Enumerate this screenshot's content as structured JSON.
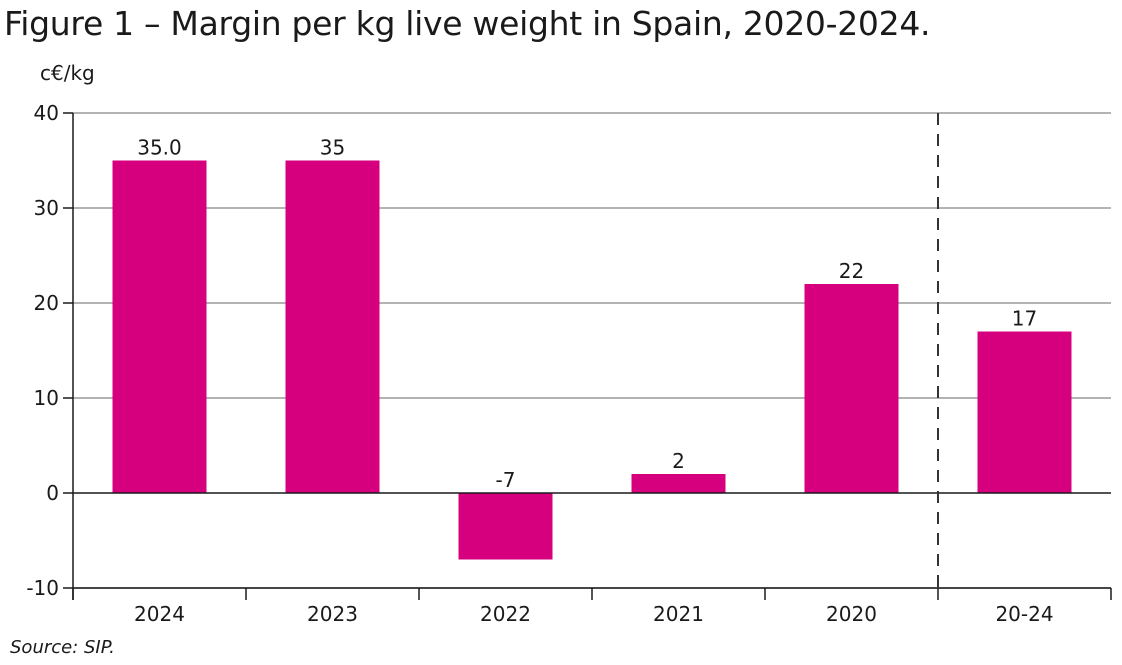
{
  "title": "Figure 1 – Margin per kg live weight in Spain, 2020-2024.",
  "source": "Source: SIP.",
  "chart_data": {
    "type": "bar",
    "unit_label": "c€/kg",
    "categories": [
      "2024",
      "2023",
      "2022",
      "2021",
      "2020",
      "20-24"
    ],
    "values": [
      35.0,
      35,
      -7,
      2,
      22,
      17
    ],
    "value_labels": [
      "35.0",
      "35",
      "-7",
      "2",
      "22",
      "17"
    ],
    "ylim": [
      -10,
      40
    ],
    "yticks": [
      -10,
      0,
      10,
      20,
      30,
      40
    ],
    "grid": true,
    "bar_color": "#d6007f",
    "separator_before_last": true
  }
}
